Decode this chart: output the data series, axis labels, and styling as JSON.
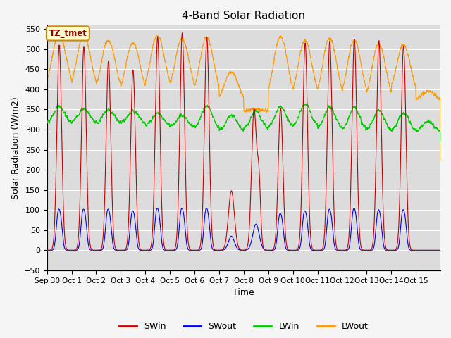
{
  "title": "4-Band Solar Radiation",
  "xlabel": "Time",
  "ylabel": "Solar Radiation (W/m2)",
  "ylim": [
    -50,
    560
  ],
  "yticks": [
    -50,
    0,
    50,
    100,
    150,
    200,
    250,
    300,
    350,
    400,
    450,
    500,
    550
  ],
  "colors": {
    "SWin": "#cc0000",
    "SWout": "#0000ee",
    "LWin": "#00cc00",
    "LWout": "#ff9900"
  },
  "annotation_label": "TZ_tmet",
  "annotation_bg": "#ffffcc",
  "annotation_border": "#cc8800",
  "annotation_text_color": "#880000",
  "bg_color": "#dcdcdc",
  "grid_color": "#ffffff",
  "fig_width": 6.4,
  "fig_height": 4.8,
  "dpi": 100,
  "tick_labels": [
    "Sep 30",
    "Oct 1",
    "Oct 2",
    "Oct 3",
    "Oct 4",
    "Oct 5",
    "Oct 6",
    "Oct 7",
    "Oct 8",
    "Oct 9",
    "Oct 10",
    "Oct 11",
    "Oct 12",
    "Oct 13",
    "Oct 14",
    "Oct 15"
  ],
  "sw_peaks": [
    510,
    505,
    470,
    448,
    530,
    540,
    530,
    148,
    350,
    354,
    515,
    520,
    525,
    521,
    507,
    0
  ],
  "swout_peaks": [
    78,
    78,
    78,
    75,
    80,
    80,
    80,
    45,
    65,
    70,
    75,
    78,
    80,
    77,
    77,
    0
  ],
  "lwin_base": [
    315,
    315,
    314,
    314,
    310,
    305,
    300,
    295,
    300,
    305,
    305,
    300,
    295,
    295,
    295,
    295
  ],
  "lwin_peak": [
    358,
    352,
    348,
    346,
    340,
    335,
    360,
    335,
    345,
    355,
    365,
    355,
    355,
    348,
    340,
    320
  ],
  "lwout_base": [
    395,
    390,
    385,
    380,
    390,
    385,
    375,
    365,
    345,
    370,
    370,
    365,
    365,
    360,
    380,
    370
  ],
  "lwout_peak": [
    537,
    533,
    520,
    515,
    533,
    525,
    530,
    443,
    350,
    530,
    520,
    527,
    522,
    512,
    510,
    395
  ],
  "lwout_shoulder_base": [
    400,
    398,
    393,
    388,
    400,
    390,
    380,
    370,
    340,
    378,
    375,
    372,
    370,
    366,
    385,
    370
  ]
}
